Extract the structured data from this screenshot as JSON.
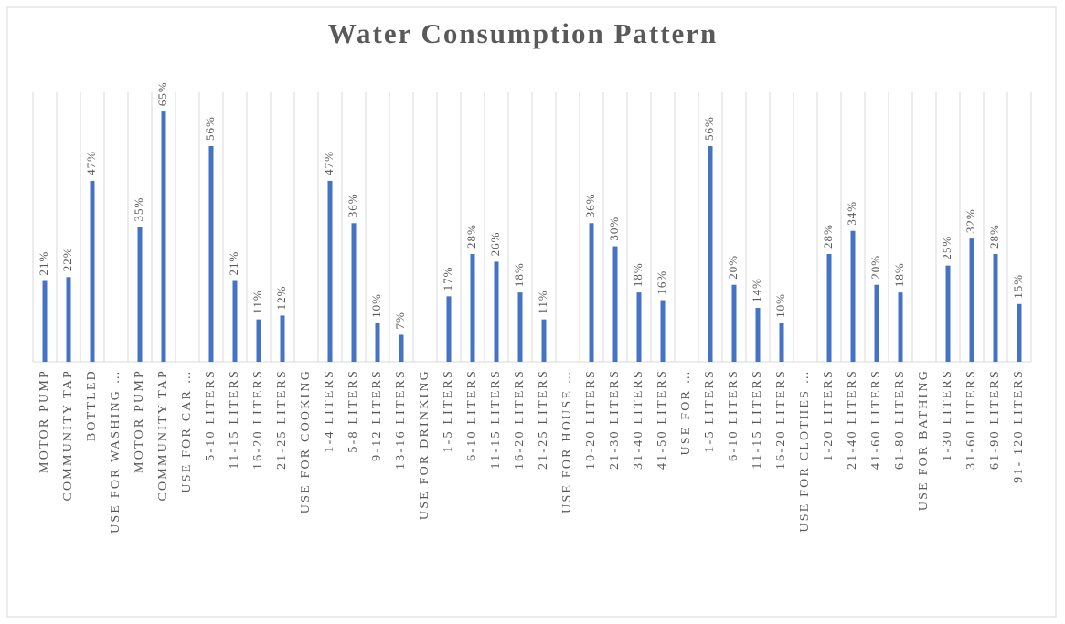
{
  "chart_data": {
    "type": "bar",
    "title": "Water Consumption Pattern",
    "categories": [
      "MOTOR PUMP",
      "COMMUNITY TAP",
      "BOTTLED",
      "USE FOR WASHING …",
      "MOTOR PUMP",
      "COMMUNITY TAP",
      "USE FOR CAR …",
      "5-10 LITERS",
      "11-15 LITERS",
      "16-20 LITERS",
      "21-25 LITERS",
      "USE FOR COOKING",
      "1-4 LITERS",
      "5-8 LITERS",
      "9-12 LITERS",
      "13-16 LITERS",
      "USE FOR DRINKING",
      "1-5 LITERS",
      "6-10 LITERS",
      "11-15 LITERS",
      "16-20 LITERS",
      "21-25 LITERS",
      "USE FOR HOUSE …",
      "10-20 LITERS",
      "21-30 LITERS",
      "31-40 LITERS",
      "41-50 LITERS",
      "USE FOR …",
      "1-5 LITERS",
      "6-10 LITERS",
      "11-15 LITERS",
      "16-20 LITERS",
      "USE FOR CLOTHES …",
      "1-20 LITERS",
      "21-40 LITERS",
      "41-60 LITERS",
      "61-80 LITERS",
      "USE FOR BATHING",
      "1-30 LITERS",
      "31-60 LITERS",
      "61-90 LITERS",
      "91- 120 LITERS"
    ],
    "values": [
      21,
      22,
      47,
      null,
      35,
      65,
      null,
      56,
      21,
      11,
      12,
      null,
      47,
      36,
      10,
      7,
      null,
      17,
      28,
      26,
      18,
      11,
      null,
      36,
      30,
      18,
      16,
      null,
      56,
      20,
      14,
      10,
      null,
      28,
      34,
      20,
      18,
      null,
      25,
      32,
      28,
      15
    ],
    "value_labels": [
      "21%",
      "22%",
      "47%",
      null,
      "35%",
      "65%",
      null,
      "56%",
      "21%",
      "11%",
      "12%",
      null,
      "47%",
      "36%",
      "10%",
      "7%",
      null,
      "17%",
      "28%",
      "26%",
      "18%",
      "11%",
      null,
      "36%",
      "30%",
      "18%",
      "16%",
      null,
      "56%",
      "20%",
      "14%",
      "10%",
      null,
      "28%",
      "34%",
      "20%",
      "18%",
      null,
      "25%",
      "32%",
      "28%",
      "15%"
    ],
    "color": "#4472c4",
    "ylim": [
      0,
      70
    ],
    "grid": true
  }
}
